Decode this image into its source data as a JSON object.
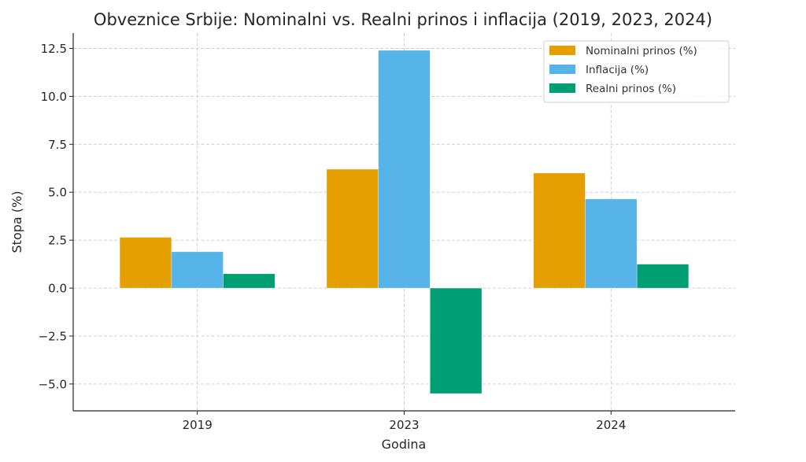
{
  "chart_data": {
    "type": "bar",
    "title": "Obveznice Srbije: Nominalni vs. Realni prinos i inflacija (2019, 2023, 2024)",
    "xlabel": "Godina",
    "ylabel": "Stopa (%)",
    "categories": [
      "2019",
      "2023",
      "2024"
    ],
    "series": [
      {
        "name": "Nominalni prinos (%)",
        "color": "#E69F00",
        "values": [
          2.65,
          6.2,
          6.0
        ]
      },
      {
        "name": "Inflacija (%)",
        "color": "#56B4E9",
        "values": [
          1.9,
          12.4,
          4.65
        ]
      },
      {
        "name": "Realni prinos (%)",
        "color": "#009E73",
        "values": [
          0.75,
          -5.5,
          1.25
        ]
      }
    ],
    "ylim": [
      -6.4,
      13.3
    ],
    "yticks": [
      -5.0,
      -2.5,
      0.0,
      2.5,
      5.0,
      7.5,
      10.0,
      12.5
    ],
    "ytick_labels": [
      "−5.0",
      "−2.5",
      "0.0",
      "2.5",
      "5.0",
      "7.5",
      "10.0",
      "12.5"
    ],
    "grid": true,
    "legend_position": "top-right"
  }
}
